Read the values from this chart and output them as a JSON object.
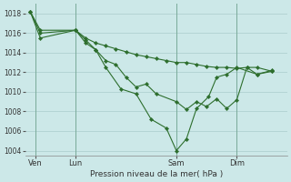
{
  "bg_color": "#cce8e8",
  "grid_color": "#aacccc",
  "line_color": "#2d6e2d",
  "marker_color": "#2d6e2d",
  "xlabel": "Pression niveau de la mer( hPa )",
  "ylim": [
    1003.5,
    1019.0
  ],
  "yticks": [
    1004,
    1006,
    1008,
    1010,
    1012,
    1014,
    1016,
    1018
  ],
  "xtick_labels": [
    "Ven",
    "Lun",
    "Sam",
    "Dim"
  ],
  "xtick_positions": [
    1,
    5,
    15,
    21
  ],
  "vline_positions": [
    1,
    5,
    15,
    21
  ],
  "xlim": [
    0,
    26
  ],
  "series": [
    {
      "x": [
        0.5,
        1.5,
        5.0,
        6.0,
        7.0,
        8.0,
        9.0,
        10.0,
        11.0,
        12.0,
        13.0,
        14.0,
        15.0,
        16.0,
        17.0,
        18.0,
        19.0,
        20.0,
        21.0,
        22.0,
        23.0,
        24.5
      ],
      "y": [
        1018.2,
        1015.5,
        1016.3,
        1015.5,
        1015.0,
        1014.7,
        1014.4,
        1014.1,
        1013.8,
        1013.6,
        1013.4,
        1013.2,
        1013.0,
        1013.0,
        1012.8,
        1012.6,
        1012.5,
        1012.5,
        1012.4,
        1012.5,
        1012.5,
        1012.1
      ]
    },
    {
      "x": [
        0.5,
        1.5,
        5.0,
        6.0,
        7.0,
        8.0,
        9.0,
        10.0,
        11.0,
        12.0,
        13.0,
        15.0,
        16.0,
        17.0,
        18.0,
        19.0,
        20.0,
        21.0,
        22.0,
        23.0,
        24.5
      ],
      "y": [
        1018.2,
        1016.0,
        1016.3,
        1015.0,
        1014.3,
        1013.2,
        1012.8,
        1011.5,
        1010.5,
        1010.8,
        1009.8,
        1009.0,
        1008.2,
        1009.0,
        1008.5,
        1009.3,
        1008.3,
        1009.2,
        1012.5,
        1011.8,
        1012.2
      ]
    },
    {
      "x": [
        0.5,
        1.5,
        5.0,
        6.0,
        7.0,
        8.0,
        9.5,
        11.0,
        12.5,
        14.0,
        15.0,
        16.0,
        17.0,
        18.2,
        19.0,
        20.0,
        21.0,
        23.0,
        24.5
      ],
      "y": [
        1018.2,
        1016.3,
        1016.3,
        1015.3,
        1014.3,
        1012.5,
        1010.3,
        1009.8,
        1007.2,
        1006.3,
        1004.0,
        1005.2,
        1008.3,
        1009.5,
        1011.5,
        1011.8,
        1012.5,
        1011.8,
        1012.1
      ]
    }
  ]
}
